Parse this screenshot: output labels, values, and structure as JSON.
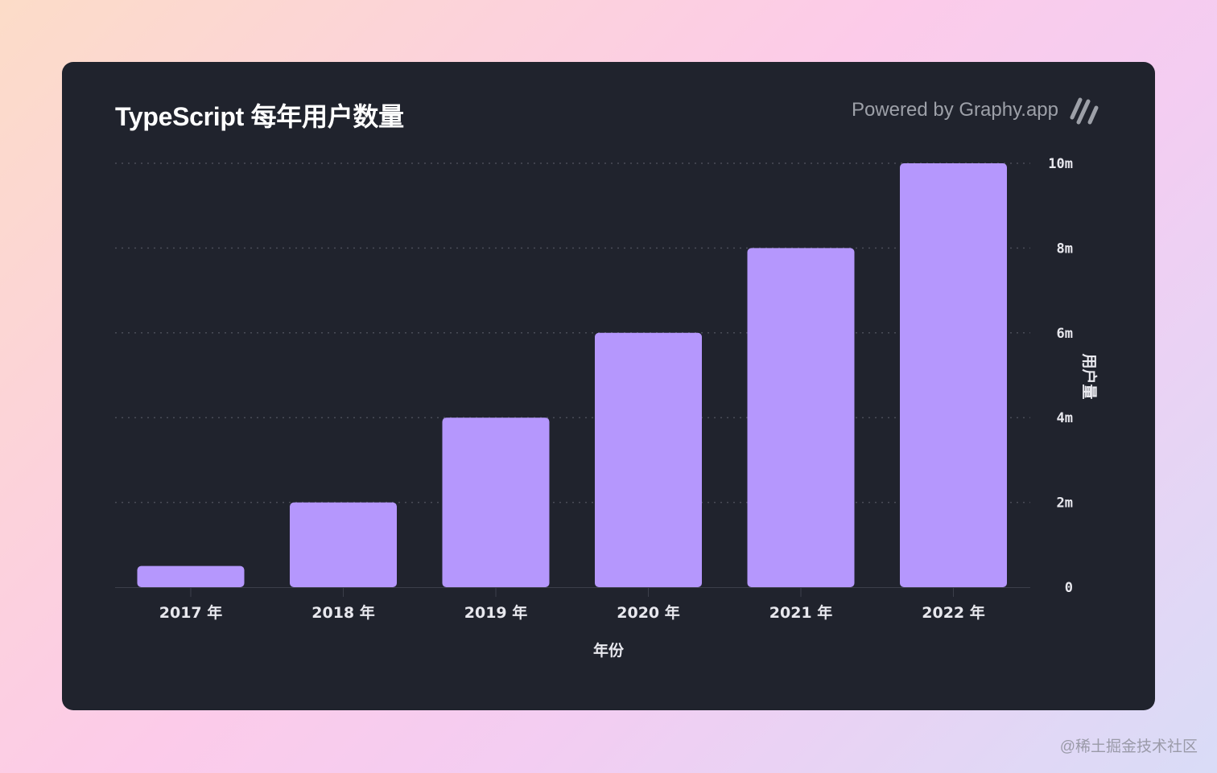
{
  "header": {
    "title": "TypeScript 每年用户数量",
    "powered_by": "Powered by Graphy.app",
    "logo_icon": "graphy-slash-logo-icon"
  },
  "watermark": "@稀土掘金技术社区",
  "colors": {
    "bar": "#b597fd",
    "card_background": "#20232d",
    "grid": "#4a4d58"
  },
  "chart_data": {
    "type": "bar",
    "categories": [
      "2017 年",
      "2018 年",
      "2019 年",
      "2020 年",
      "2021 年",
      "2022 年"
    ],
    "values": [
      0.5,
      2,
      4,
      6,
      8,
      10
    ],
    "title": "TypeScript 每年用户数量",
    "xlabel": "年份",
    "ylabel": "用户量",
    "ylim": [
      0,
      10
    ],
    "yticks": [
      0,
      2,
      4,
      6,
      8,
      10
    ],
    "ytick_labels": [
      "0",
      "2m",
      "4m",
      "6m",
      "8m",
      "10m"
    ],
    "y_axis_side": "right",
    "grid": true,
    "grid_style": "dotted",
    "legend": "none"
  }
}
